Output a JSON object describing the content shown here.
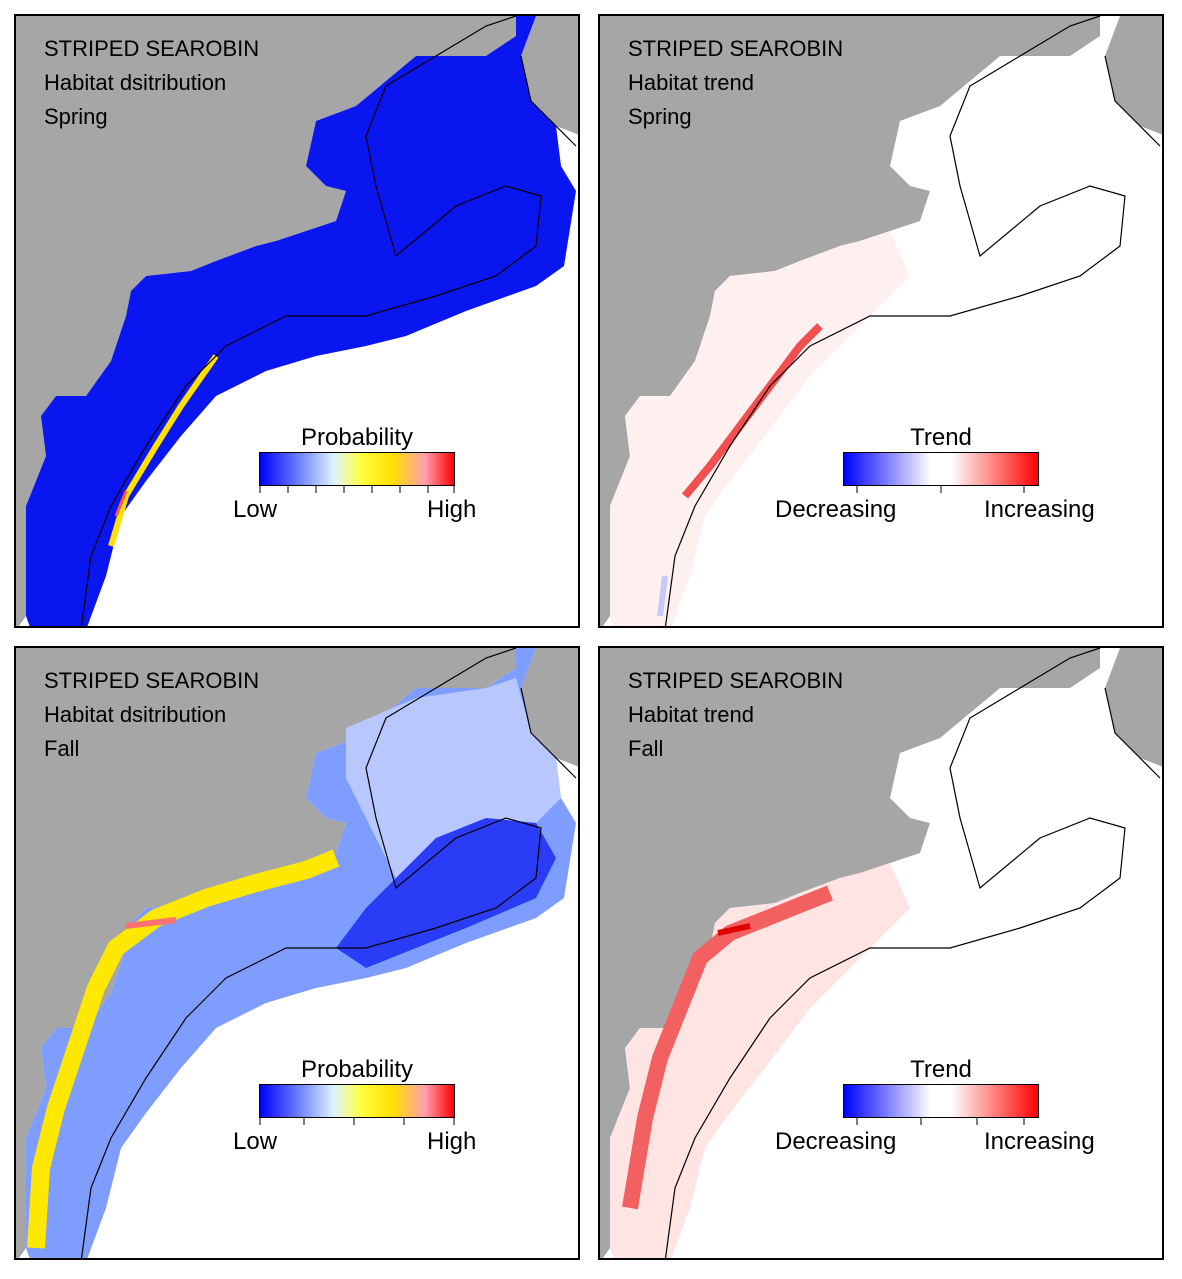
{
  "panels": [
    {
      "id": "p1",
      "species": "STRIPED SEAROBIN",
      "metric": "Habitat dsitribution",
      "season": "Spring",
      "legend": {
        "title": "Probability",
        "low": "Low",
        "high": "High",
        "type": "probability"
      }
    },
    {
      "id": "p2",
      "species": "STRIPED SEAROBIN",
      "metric": "Habitat trend",
      "season": "Spring",
      "legend": {
        "title": "Trend",
        "low": "Decreasing",
        "high": "Increasing",
        "type": "trend"
      }
    },
    {
      "id": "p3",
      "species": "STRIPED SEAROBIN",
      "metric": "Habitat dsitribution",
      "season": "Fall",
      "legend": {
        "title": "Probability",
        "low": "Low",
        "high": "High",
        "type": "probability"
      }
    },
    {
      "id": "p4",
      "species": "STRIPED SEAROBIN",
      "metric": "Habitat trend",
      "season": "Fall",
      "legend": {
        "title": "Trend",
        "low": "Decreasing",
        "high": "Increasing",
        "type": "trend"
      }
    }
  ],
  "colors": {
    "land": "#a6a6a6",
    "water": "#ffffff",
    "outline": "#000000",
    "prob_low": "#0000ff",
    "prob_mid": "#ffff00",
    "prob_high": "#ff0000",
    "trend_dec": "#0000ff",
    "trend_neutral": "#ffffff",
    "trend_inc": "#ff0000"
  }
}
